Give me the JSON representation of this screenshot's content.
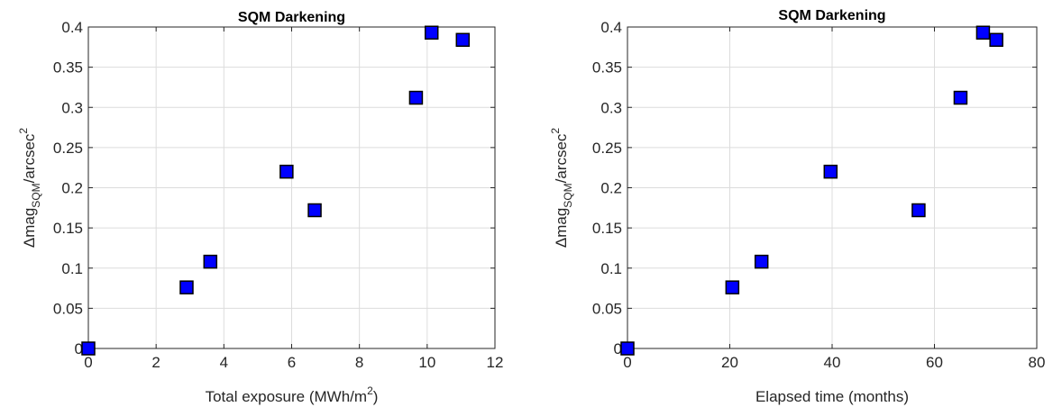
{
  "chart_data": [
    {
      "type": "scatter",
      "title": "SQM Darkening",
      "xlabel": "Total exposure (MWh/m",
      "xlabel_sup": "2",
      "xlabel_suffix": ")",
      "ylabel_prefix": "Δmag",
      "ylabel_sub": "SQM",
      "ylabel_mid": "/arcsec",
      "ylabel_sup": "2",
      "xlim": [
        0,
        12
      ],
      "ylim": [
        0,
        0.4
      ],
      "xticks": [
        0,
        2,
        4,
        6,
        8,
        10,
        12
      ],
      "yticks": [
        0,
        0.05,
        0.1,
        0.15,
        0.2,
        0.25,
        0.3,
        0.35,
        0.4
      ],
      "xtick_labels": [
        "0",
        "2",
        "4",
        "6",
        "8",
        "10",
        "12"
      ],
      "ytick_labels": [
        "0",
        "0.05",
        "0.1",
        "0.15",
        "0.2",
        "0.25",
        "0.3",
        "0.35",
        "0.4"
      ],
      "grid": true,
      "marker": "square",
      "marker_color": "#0000ff",
      "marker_edge": "#000000",
      "x": [
        0,
        2.9,
        3.6,
        5.85,
        6.68,
        9.67,
        10.13,
        11.05
      ],
      "y": [
        0,
        0.076,
        0.108,
        0.22,
        0.172,
        0.312,
        0.393,
        0.384
      ]
    },
    {
      "type": "scatter",
      "title": "SQM Darkening",
      "xlabel": "Elapsed time (months)",
      "xlabel_sup": "",
      "xlabel_suffix": "",
      "ylabel_prefix": "Δmag",
      "ylabel_sub": "SQM",
      "ylabel_mid": "/arcsec",
      "ylabel_sup": "2",
      "xlim": [
        0,
        80
      ],
      "ylim": [
        0,
        0.4
      ],
      "xticks": [
        0,
        20,
        40,
        60,
        80
      ],
      "yticks": [
        0,
        0.05,
        0.1,
        0.15,
        0.2,
        0.25,
        0.3,
        0.35,
        0.4
      ],
      "xtick_labels": [
        "0",
        "20",
        "40",
        "60",
        "80"
      ],
      "ytick_labels": [
        "0",
        "0.05",
        "0.1",
        "0.15",
        "0.2",
        "0.25",
        "0.3",
        "0.35",
        "0.4"
      ],
      "grid": true,
      "marker": "square",
      "marker_color": "#0000ff",
      "marker_edge": "#000000",
      "x": [
        0,
        20.5,
        26.2,
        39.7,
        56.9,
        65.1,
        69.5,
        72.1
      ],
      "y": [
        0,
        0.076,
        0.108,
        0.22,
        0.172,
        0.312,
        0.393,
        0.384
      ]
    }
  ]
}
